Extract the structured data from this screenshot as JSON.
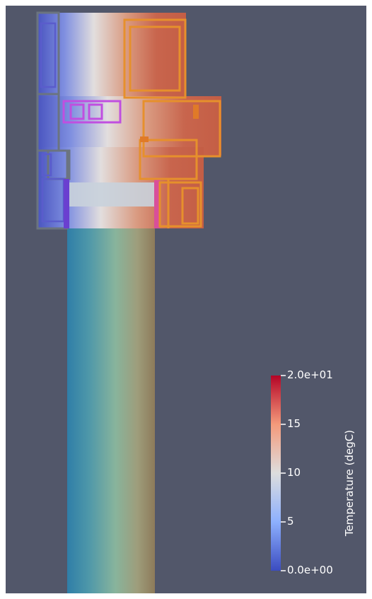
{
  "colors": {
    "background": "#52576a",
    "colormap_min": "#3b4cc0",
    "colormap_mid": "#dddddd",
    "colormap_max": "#b40426",
    "label_color": "#ffffff"
  },
  "colorbar": {
    "title": "Temperature (degC)",
    "tick_labels": [
      "2.0e+01",
      "15",
      "10",
      "5",
      "0.0e+00"
    ],
    "range": [
      0,
      20
    ]
  }
}
